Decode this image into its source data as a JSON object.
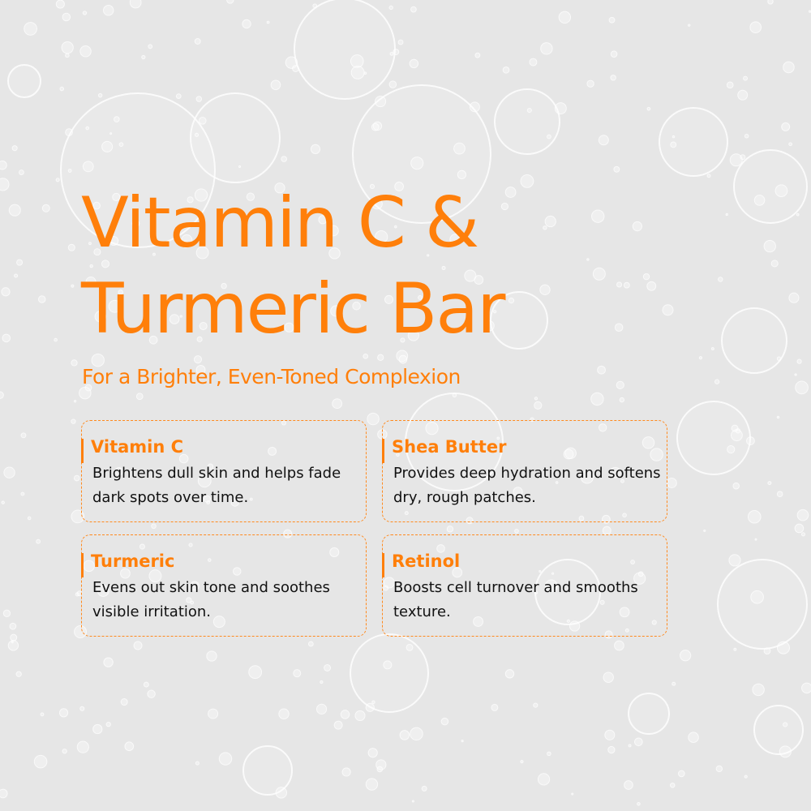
{
  "heading": {
    "line1": "Vitamin C &",
    "line2": "Turmeric Bar"
  },
  "subtitle": "For a Brighter, Even-Toned Complexion",
  "accent_color": "#ff7f0a",
  "cards": [
    {
      "title": "Vitamin C",
      "body": "Brightens dull skin and helps fade dark spots over time."
    },
    {
      "title": "Shea Butter",
      "body": "Provides deep hydration and softens dry, rough patches."
    },
    {
      "title": "Turmeric",
      "body": "Evens out skin tone and soothes visible irritation."
    },
    {
      "title": "Retinol",
      "body": "Boosts cell turnover and smooths texture."
    }
  ]
}
